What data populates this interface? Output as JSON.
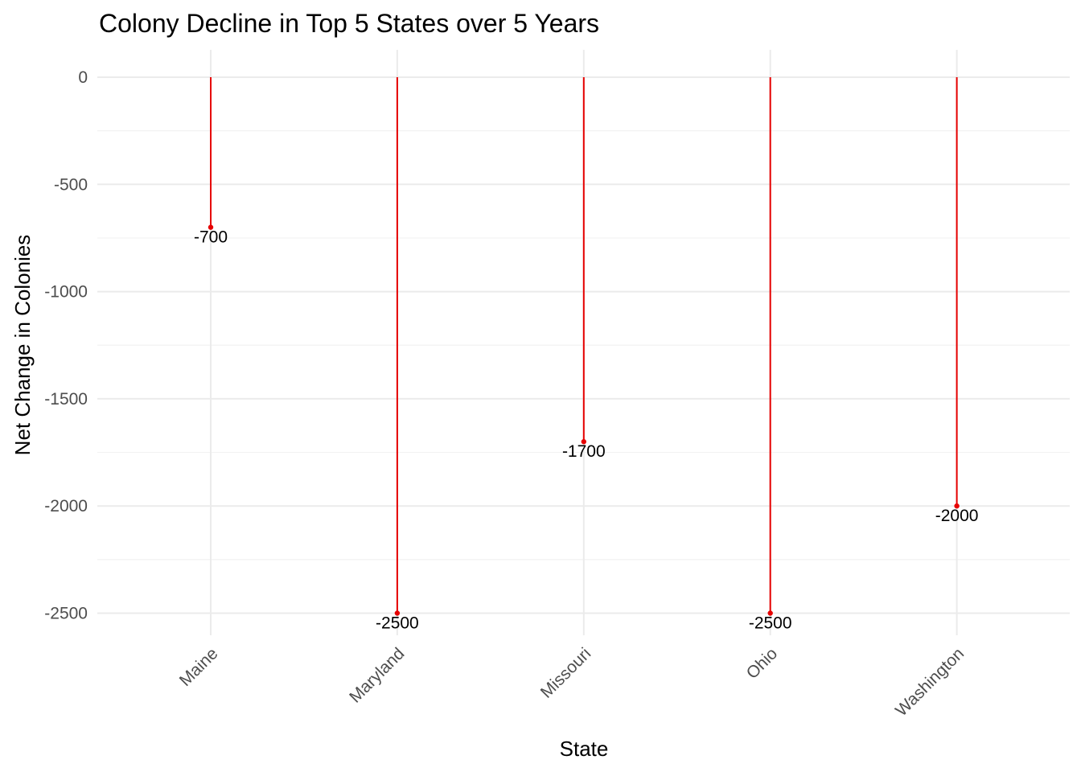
{
  "chart_data": {
    "type": "lollipop",
    "title": "Colony Decline in Top 5 States over 5 Years",
    "xlabel": "State",
    "ylabel": "Net Change in Colonies",
    "categories": [
      "Maine",
      "Maryland",
      "Missouri",
      "Ohio",
      "Washington"
    ],
    "values": [
      -700,
      -2500,
      -1700,
      -2500,
      -2000
    ],
    "data_labels": [
      "-700",
      "-2500",
      "-1700",
      "-2500",
      "-2000"
    ],
    "ylim": [
      -2600,
      125
    ],
    "yticks": [
      0,
      -500,
      -1000,
      -1500,
      -2000,
      -2500
    ],
    "ytick_labels": [
      "0",
      "-500",
      "-1000",
      "-1500",
      "-2000",
      "-2500"
    ],
    "grid": true,
    "legend": "none",
    "colors": {
      "stem": "#e60000",
      "point": "#e60000"
    }
  }
}
